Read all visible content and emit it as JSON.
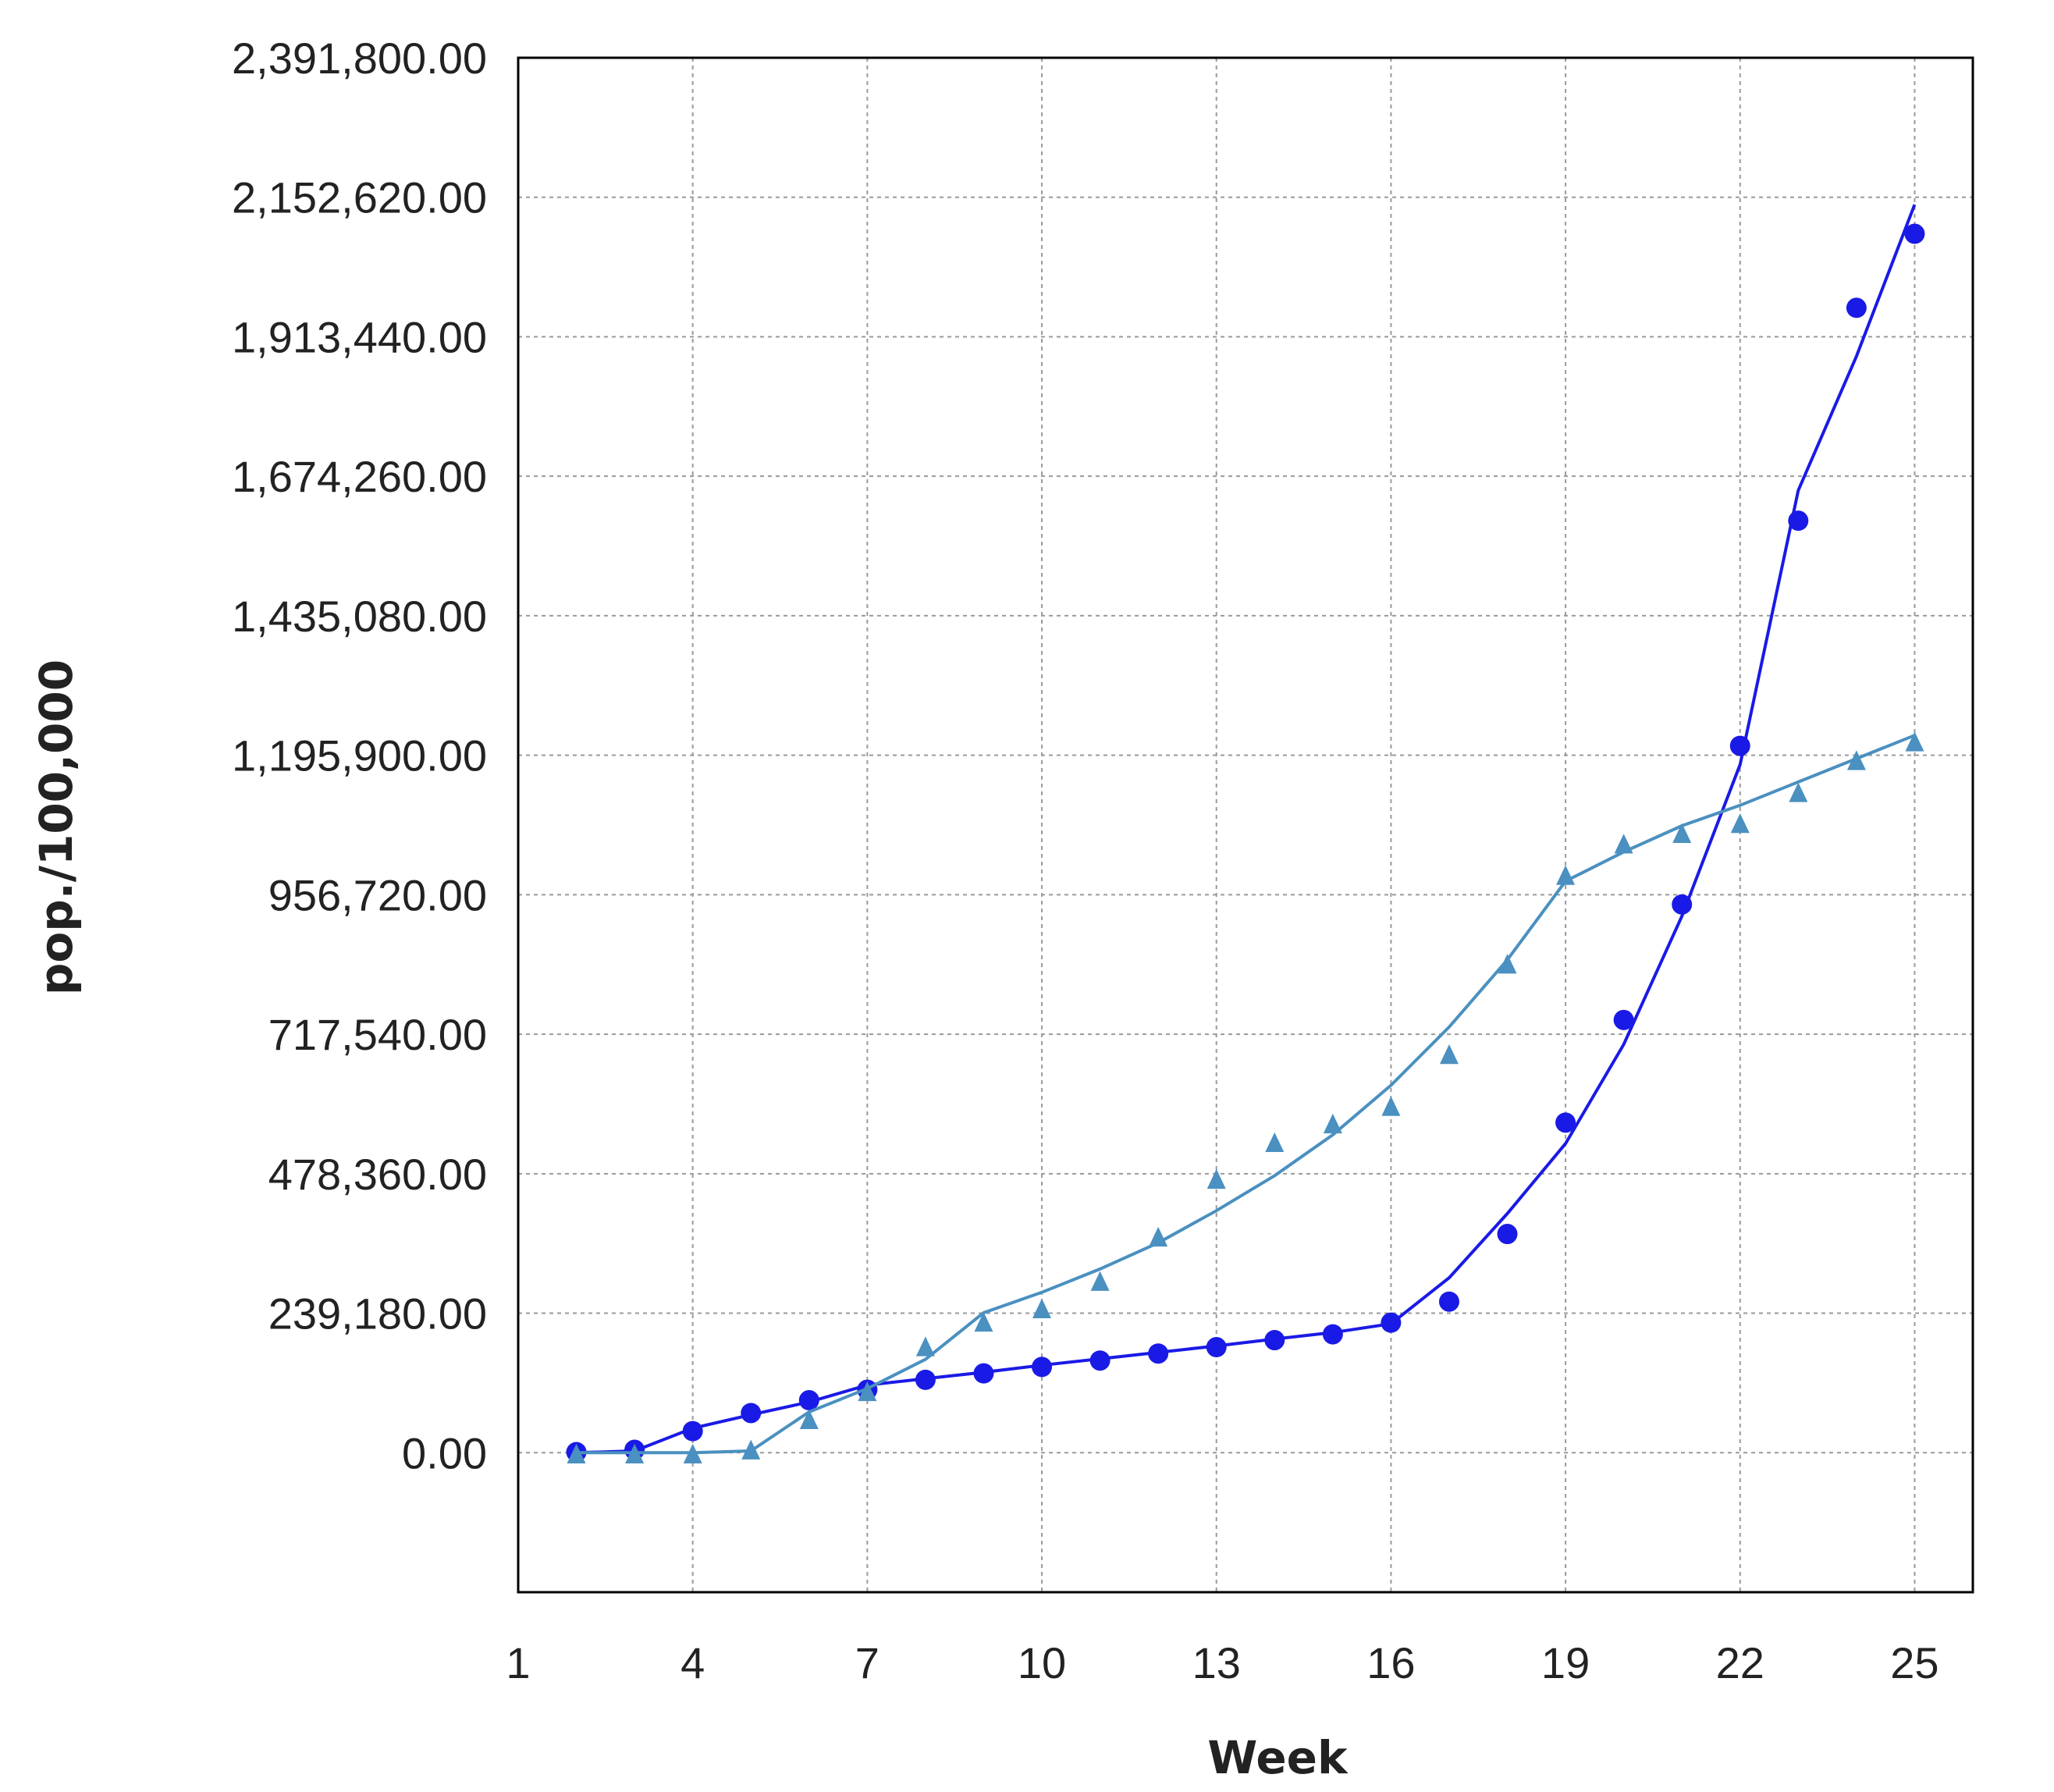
{
  "chart_data": {
    "type": "line",
    "title": "",
    "xlabel": "Week",
    "ylabel": "pop./100,000",
    "xlim": [
      1,
      26
    ],
    "ylim": [
      -239180,
      2391800
    ],
    "xticks": [
      1,
      4,
      7,
      10,
      13,
      16,
      19,
      22,
      25
    ],
    "xtick_labels": [
      "1",
      "4",
      "7",
      "10",
      "13",
      "16",
      "19",
      "22",
      "25"
    ],
    "yticks": [
      0,
      239180,
      478360,
      717540,
      956720,
      1195900,
      1435080,
      1674260,
      1913440,
      2152620,
      2391800
    ],
    "ytick_labels": [
      "0.00",
      "239,180.00",
      "478,360.00",
      "717,540.00",
      "956,720.00",
      "1,195,900.00",
      "1,435,080.00",
      "1,674,260.00",
      "1,913,440.00",
      "2,152,620.00",
      "2,391,800.00"
    ],
    "grid": true,
    "legend": "none",
    "series": [
      {
        "color": "#1a1ae6",
        "marker": "circle",
        "x": [
          2,
          3,
          4,
          5,
          6,
          7,
          8,
          9,
          10,
          11,
          12,
          13,
          14,
          15,
          16,
          17,
          18,
          19,
          20,
          21,
          22,
          23,
          24,
          25
        ],
        "points": [
          1000,
          5000,
          37000,
          68000,
          90000,
          108000,
          125000,
          136000,
          147000,
          158000,
          170000,
          181000,
          193000,
          203000,
          223000,
          259000,
          375000,
          566000,
          742000,
          940000,
          1212000,
          1598000,
          1963000,
          2090000
        ],
        "fit": [
          0,
          3000,
          42000,
          65000,
          87000,
          116000,
          127000,
          138000,
          150000,
          161000,
          172000,
          183000,
          195000,
          206000,
          221000,
          300000,
          410000,
          530000,
          700000,
          920000,
          1180000,
          1650000,
          1880000,
          2140000
        ]
      },
      {
        "color": "#4a90c0",
        "marker": "triangle",
        "x": [
          2,
          3,
          4,
          5,
          6,
          7,
          8,
          9,
          10,
          11,
          12,
          13,
          14,
          15,
          16,
          17,
          18,
          19,
          20,
          21,
          22,
          23,
          24,
          25
        ],
        "points": [
          -4000,
          -4000,
          -4000,
          3000,
          55000,
          103000,
          180000,
          222000,
          245000,
          292000,
          368000,
          467000,
          530000,
          562000,
          592000,
          681000,
          836000,
          988000,
          1042000,
          1060000,
          1077000,
          1130000,
          1185000,
          1217000
        ],
        "fit": [
          0,
          0,
          0,
          3000,
          70000,
          110000,
          160000,
          240000,
          275000,
          315000,
          360000,
          415000,
          475000,
          545000,
          630000,
          730000,
          845000,
          980000,
          1030000,
          1075000,
          1110000,
          1150000,
          1190000,
          1230000
        ]
      }
    ]
  }
}
